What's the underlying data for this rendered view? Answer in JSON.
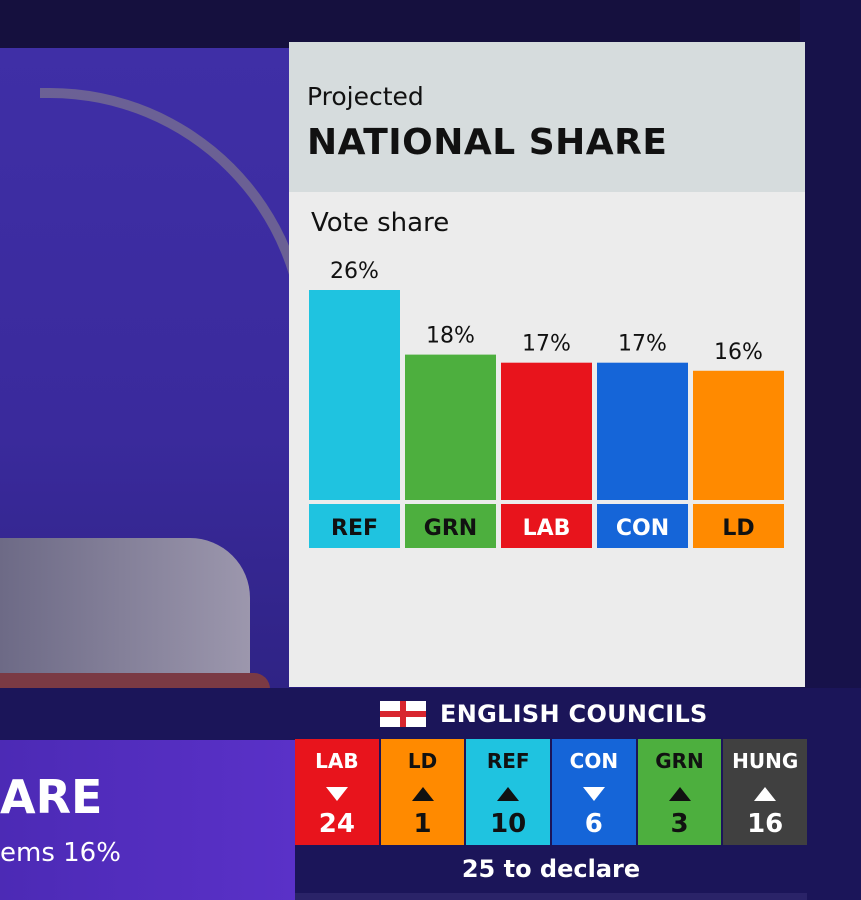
{
  "graphic": {
    "kicker": "Projected",
    "headline": "NATIONAL SHARE",
    "subhead": "Vote share"
  },
  "chart_data": {
    "type": "bar",
    "title": "NATIONAL SHARE",
    "subtitle": "Vote share",
    "categories": [
      "REF",
      "GRN",
      "LAB",
      "CON",
      "LD"
    ],
    "values": [
      26,
      18,
      17,
      17,
      16
    ],
    "value_labels": [
      "26%",
      "18%",
      "17%",
      "17%",
      "16%"
    ],
    "colors": [
      "#1fc3e0",
      "#4daf3e",
      "#e8141c",
      "#1565d8",
      "#ff8a00"
    ],
    "label_colors": [
      "#111111",
      "#111111",
      "#ffffff",
      "#ffffff",
      "#111111"
    ],
    "ylim": [
      0,
      26
    ],
    "grid": false,
    "legend": "none"
  },
  "councils": {
    "title": "ENGLISH COUNCILS",
    "tiles": [
      {
        "party": "LAB",
        "direction": "down",
        "count": "24",
        "color": "#e8141c",
        "text_color": "#ffffff"
      },
      {
        "party": "LD",
        "direction": "up",
        "count": "1",
        "color": "#ff8a00",
        "text_color": "#111111"
      },
      {
        "party": "REF",
        "direction": "up",
        "count": "10",
        "color": "#1fc3e0",
        "text_color": "#111111"
      },
      {
        "party": "CON",
        "direction": "down",
        "count": "6",
        "color": "#1565d8",
        "text_color": "#ffffff"
      },
      {
        "party": "GRN",
        "direction": "up",
        "count": "3",
        "color": "#4daf3e",
        "text_color": "#111111"
      },
      {
        "party": "HUNG",
        "direction": "up",
        "count": "16",
        "color": "#404040",
        "text_color": "#ffffff"
      }
    ],
    "to_declare": "25 to declare"
  },
  "background": {
    "partial_word": "ARE",
    "partial_line": "ems 16%"
  }
}
